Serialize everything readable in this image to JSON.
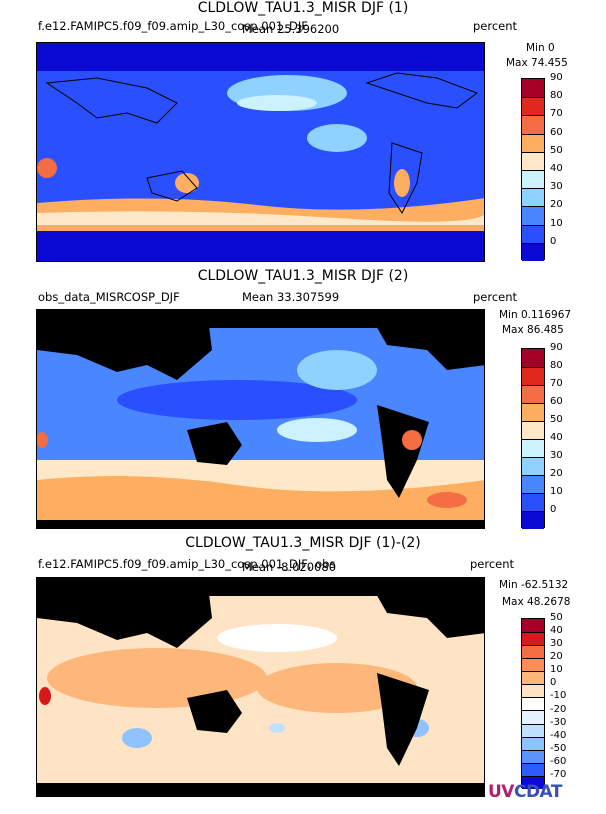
{
  "panels": [
    {
      "title": "CLDLOW_TAU1.3_MISR DJF (1)",
      "dataset": "f.e12.FAMIPC5.f09_f09.amip_L30_cosp.001_DJF",
      "mean_label": "Mean 25.396200",
      "units": "percent",
      "min_label": "Min 0",
      "max_label": "Max 74.455",
      "colorbar": {
        "ticks": [
          "90",
          "80",
          "70",
          "60",
          "50",
          "40",
          "30",
          "20",
          "10",
          "0"
        ],
        "colors": [
          "#a50026",
          "#e0281e",
          "#f46d43",
          "#fdae61",
          "#fee8c8",
          "#ccf2ff",
          "#8fd1ff",
          "#4a86ff",
          "#2a4fff",
          "#0a0ad2"
        ]
      },
      "legend_note": "Overlapping text as rendered: model run name, mean and units share one line."
    },
    {
      "title": "CLDLOW_TAU1.3_MISR DJF (2)",
      "dataset": "obs_data_MISRCOSP_DJF",
      "mean_label": "Mean 33.307599",
      "units": "percent",
      "min_label": "Min 0.116967",
      "max_label": "Max 86.485",
      "colorbar": {
        "ticks": [
          "90",
          "80",
          "70",
          "60",
          "50",
          "40",
          "30",
          "20",
          "10",
          "0"
        ],
        "colors": [
          "#a50026",
          "#e0281e",
          "#f46d43",
          "#fdae61",
          "#fee8c8",
          "#ccf2ff",
          "#8fd1ff",
          "#4a86ff",
          "#2a4fff",
          "#0a0ad2"
        ]
      }
    },
    {
      "title": "CLDLOW_TAU1.3_MISR DJF (1)-(2)",
      "dataset": "f.e12.FAMIPC5.f09_f09.amip_L30_cosp.001_DJF, obs",
      "mean_label": "Mean -8.020080",
      "units": "percent",
      "min_label": "Min -62.5132",
      "max_label": "Max 48.2678",
      "colorbar": {
        "ticks": [
          "50",
          "40",
          "30",
          "20",
          "10",
          "0",
          "-10",
          "-20",
          "-30",
          "-40",
          "-50",
          "-60",
          "-70"
        ],
        "colors": [
          "#a50026",
          "#d7191c",
          "#f46d43",
          "#fb8d59",
          "#fdb77a",
          "#fee3c4",
          "#ffffff",
          "#e6f2ff",
          "#bfe0ff",
          "#8fc2ff",
          "#5a95ff",
          "#2f5cff",
          "#0a0ad2"
        ]
      }
    }
  ],
  "logo": {
    "part1": "UV",
    "part2": "CDAT"
  }
}
